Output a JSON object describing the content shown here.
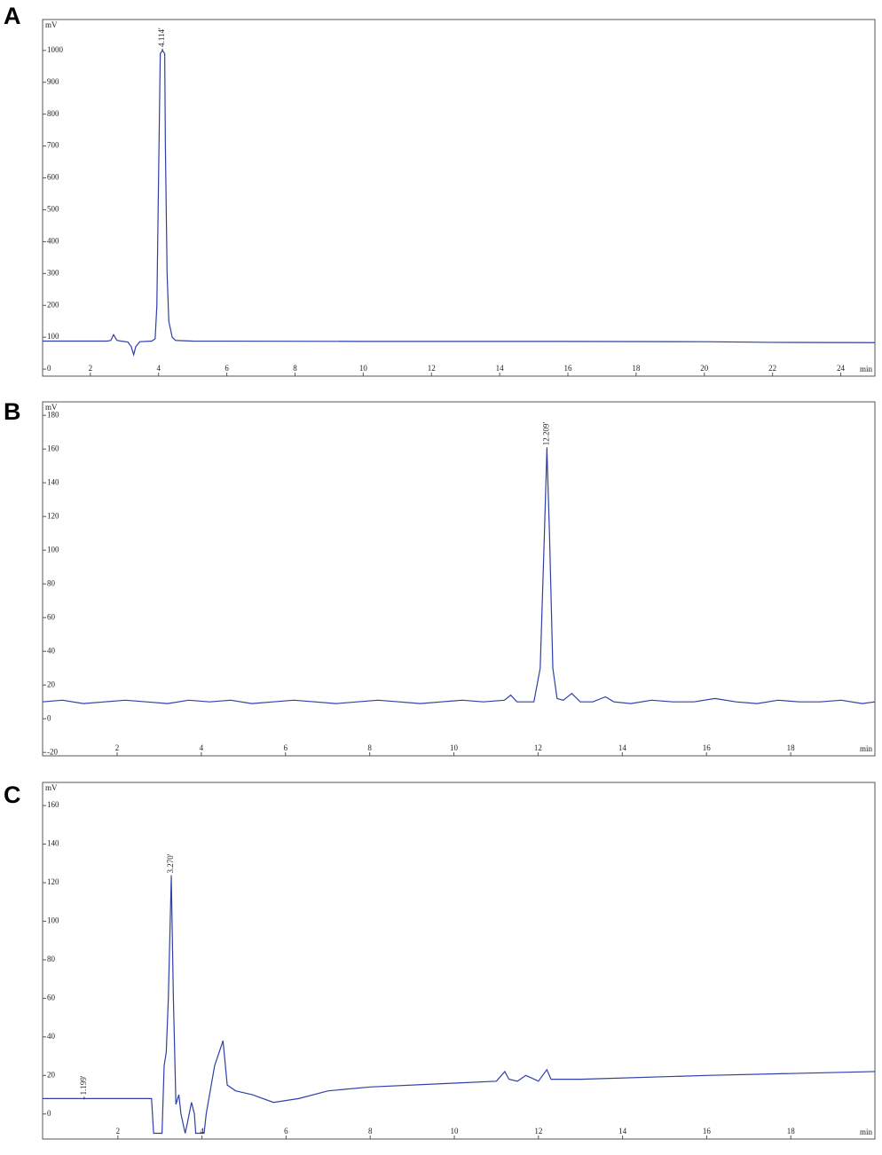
{
  "chart_data": [
    {
      "type": "line",
      "panel_label": "A",
      "y_label": "mV",
      "x_label": "min",
      "color": "#2e3fa8",
      "x": [
        0.6,
        2.5,
        2.6,
        2.68,
        2.78,
        2.9,
        3.1,
        3.2,
        3.27,
        3.33,
        3.45,
        3.8,
        3.9,
        3.95,
        4.0,
        4.05,
        4.114,
        4.18,
        4.2,
        4.25,
        4.3,
        4.4,
        4.5,
        5,
        10,
        15,
        20,
        22,
        25
      ],
      "values": [
        88,
        88,
        90,
        108,
        90,
        88,
        85,
        70,
        45,
        70,
        86,
        88,
        95,
        200,
        600,
        990,
        1000,
        990,
        700,
        300,
        150,
        100,
        90,
        88,
        87,
        87,
        86,
        84,
        83
      ],
      "xlim": [
        0.6,
        25
      ],
      "ylim": [
        -22,
        1097
      ],
      "xticks": [
        2,
        4,
        6,
        8,
        10,
        12,
        14,
        16,
        18,
        20,
        22,
        24
      ],
      "yticks": [
        0,
        100,
        200,
        300,
        400,
        500,
        600,
        700,
        800,
        900,
        1000
      ],
      "annotations": [
        {
          "text": "4.114'",
          "x": 4.114
        }
      ]
    },
    {
      "type": "line",
      "panel_label": "B",
      "y_label": "mV",
      "x_label": "min",
      "color": "#2e3fa8",
      "x": [
        0.23,
        0.7,
        1.2,
        1.7,
        2.2,
        2.7,
        3.2,
        3.7,
        4.2,
        4.7,
        5.2,
        5.7,
        6.2,
        6.7,
        7.2,
        7.7,
        8.2,
        8.7,
        9.2,
        9.7,
        10.2,
        10.7,
        11.2,
        11.35,
        11.5,
        11.9,
        12.05,
        12.15,
        12.209,
        12.27,
        12.35,
        12.45,
        12.6,
        12.8,
        13.0,
        13.3,
        13.6,
        13.8,
        14.2,
        14.7,
        15.2,
        15.7,
        16.2,
        16.7,
        17.2,
        17.7,
        18.2,
        18.7,
        19.2,
        19.7,
        20
      ],
      "values": [
        10,
        11,
        9,
        10,
        11,
        10,
        9,
        11,
        10,
        11,
        9,
        10,
        11,
        10,
        9,
        10,
        11,
        10,
        9,
        10,
        11,
        10,
        11,
        14,
        10,
        10,
        30,
        110,
        160,
        110,
        30,
        12,
        11,
        15,
        10,
        10,
        13,
        10,
        9,
        11,
        10,
        10,
        12,
        10,
        9,
        11,
        10,
        10,
        11,
        9,
        10
      ],
      "xlim": [
        0.23,
        20
      ],
      "ylim": [
        -22,
        188
      ],
      "xticks": [
        2,
        4,
        6,
        8,
        10,
        12,
        14,
        16,
        18
      ],
      "yticks": [
        -20,
        0,
        20,
        40,
        60,
        80,
        100,
        120,
        140,
        160,
        180
      ],
      "annotations": [
        {
          "text": "12.209'",
          "x": 12.209
        }
      ]
    },
    {
      "type": "line",
      "panel_label": "C",
      "y_label": "mV",
      "x_label": "min",
      "color": "#2e3fa8",
      "x": [
        0.21,
        1.199,
        2.8,
        2.85,
        3.05,
        3.1,
        3.15,
        3.2,
        3.27,
        3.32,
        3.38,
        3.45,
        3.5,
        3.6,
        3.65,
        3.75,
        3.82,
        3.85,
        4.05,
        4.1,
        4.3,
        4.5,
        4.6,
        4.8,
        5.2,
        5.7,
        6.3,
        7,
        8,
        10,
        11,
        11.2,
        11.3,
        11.5,
        11.7,
        11.8,
        12,
        12.2,
        12.3,
        13,
        16,
        20
      ],
      "values": [
        8,
        8,
        8,
        -10,
        -10,
        25,
        32,
        60,
        123,
        60,
        5,
        10,
        0,
        -10,
        -5,
        6,
        0,
        -10,
        -10,
        0,
        25,
        38,
        15,
        12,
        10,
        6,
        8,
        12,
        14,
        16,
        17,
        22,
        18,
        17,
        20,
        19,
        17,
        23,
        18,
        18,
        20,
        22
      ],
      "xlim": [
        0.21,
        20
      ],
      "ylim": [
        -13,
        172
      ],
      "xticks": [
        2,
        4,
        6,
        8,
        10,
        12,
        14,
        16,
        18
      ],
      "yticks": [
        0,
        20,
        40,
        60,
        80,
        100,
        120,
        140,
        160
      ],
      "annotations": [
        {
          "text": "3.270'",
          "x": 3.27
        },
        {
          "text": "1.199'",
          "x": 1.199
        }
      ]
    }
  ]
}
